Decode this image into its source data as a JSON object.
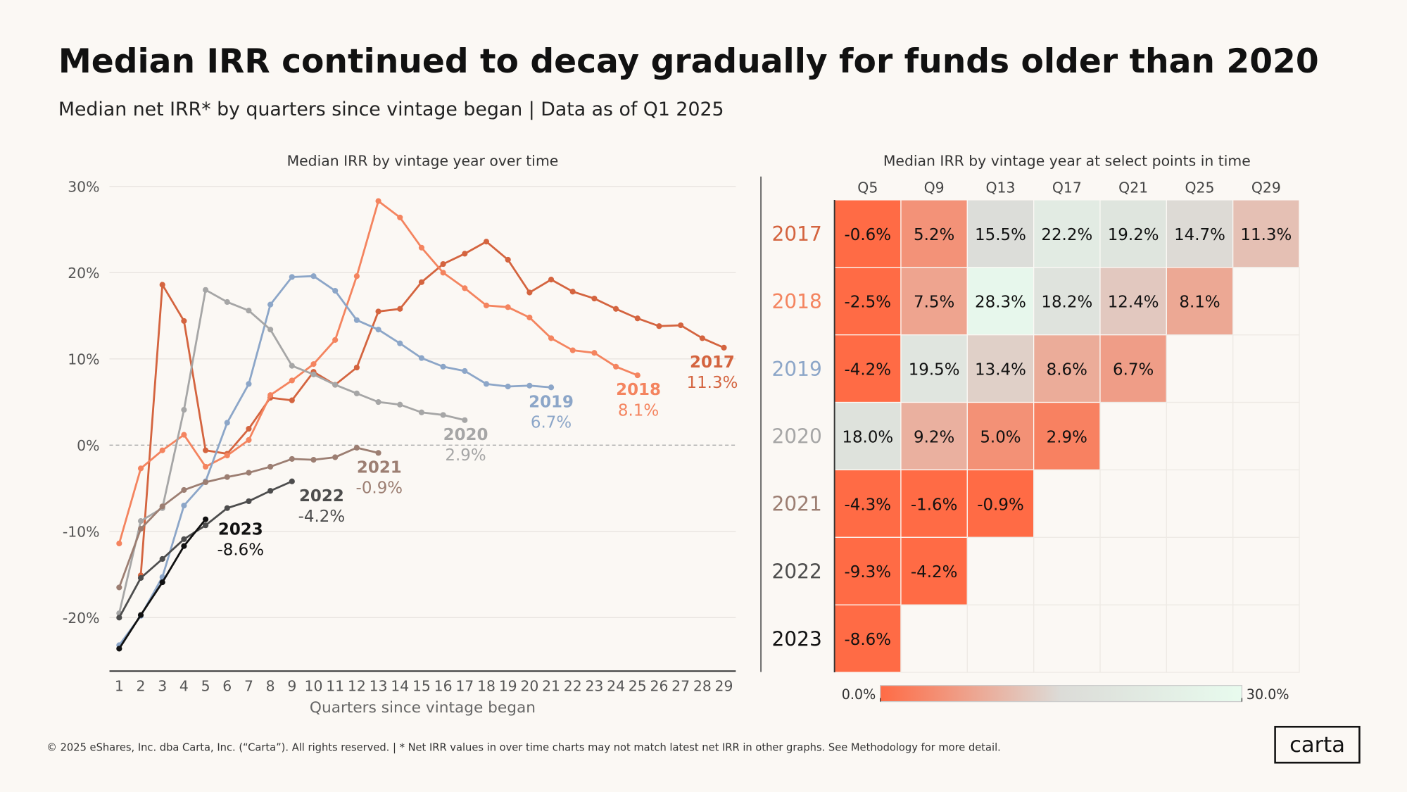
{
  "title": "Median IRR continued to decay gradually for funds older than 2020",
  "subtitle": "Median net IRR* by quarters since vintage began | Data as of Q1 2025",
  "footer": "© 2025 eShares, Inc. dba Carta, Inc. (“Carta”). All rights reserved.  |  * Net IRR values in over time charts may not match latest net IRR in other  graphs. See Methodology for more detail.",
  "logo": "carta",
  "chart_data": [
    {
      "type": "line",
      "title": "Median IRR by vintage year over time",
      "x_label": "Quarters since vintage began",
      "x": [
        1,
        2,
        3,
        4,
        5,
        6,
        7,
        8,
        9,
        10,
        11,
        12,
        13,
        14,
        15,
        16,
        17,
        18,
        19,
        20,
        21,
        22,
        23,
        24,
        25,
        26,
        27,
        28,
        29
      ],
      "xlim": [
        0.55,
        29.55
      ],
      "xticks": [
        1,
        2,
        3,
        4,
        5,
        6,
        7,
        8,
        9,
        10,
        11,
        12,
        13,
        14,
        15,
        16,
        17,
        18,
        19,
        20,
        21,
        22,
        23,
        24,
        25,
        26,
        27,
        28,
        29
      ],
      "ylim": [
        -26.2,
        30
      ],
      "yticks": [
        {
          "value": 30,
          "label": "30%"
        },
        {
          "value": 20,
          "label": "20%"
        },
        {
          "value": 10,
          "label": "10%"
        },
        {
          "value": 0,
          "label": "0%"
        },
        {
          "value": -10,
          "label": "-10%"
        },
        {
          "value": -20,
          "label": "-20%"
        }
      ],
      "grid": true,
      "zero_line": true,
      "series": [
        {
          "name": "2017",
          "color": "#d4643f",
          "end_label": "11.3%",
          "values": [
            null,
            -15.1,
            18.6,
            14.4,
            -0.6,
            -1.0,
            1.9,
            5.5,
            5.2,
            8.5,
            7.0,
            9.0,
            15.5,
            15.8,
            18.9,
            21.0,
            22.2,
            23.6,
            21.5,
            17.7,
            19.2,
            17.8,
            17.0,
            15.8,
            14.7,
            13.8,
            13.9,
            12.4,
            11.3
          ]
        },
        {
          "name": "2018",
          "color": "#f4845f",
          "end_label": "8.1%",
          "values": [
            -11.4,
            -2.7,
            -0.6,
            1.2,
            -2.5,
            -1.2,
            0.6,
            5.8,
            7.5,
            9.4,
            12.2,
            19.6,
            28.3,
            26.4,
            22.9,
            20.0,
            18.2,
            16.2,
            16.0,
            14.8,
            12.4,
            11.0,
            10.7,
            9.1,
            8.1,
            null,
            null,
            null,
            null
          ]
        },
        {
          "name": "2019",
          "color": "#8ca6c8",
          "end_label": "6.7%",
          "values": [
            -23.2,
            -19.8,
            -15.3,
            -7.0,
            -4.2,
            2.6,
            7.1,
            16.3,
            19.5,
            19.6,
            17.9,
            14.5,
            13.4,
            11.8,
            10.1,
            9.1,
            8.6,
            7.1,
            6.8,
            6.9,
            6.7,
            null,
            null,
            null,
            null,
            null,
            null,
            null,
            null
          ]
        },
        {
          "name": "2020",
          "color": "#a6a6a6",
          "end_label": "2.9%",
          "values": [
            -19.5,
            -8.8,
            -7.3,
            4.1,
            18.0,
            16.6,
            15.6,
            13.4,
            9.2,
            8.2,
            7.0,
            6.0,
            5.0,
            4.7,
            3.8,
            3.5,
            2.9,
            null,
            null,
            null,
            null,
            null,
            null,
            null,
            null,
            null,
            null,
            null,
            null
          ]
        },
        {
          "name": "2021",
          "color": "#9c7e72",
          "end_label": "-0.9%",
          "values": [
            -16.5,
            -9.7,
            -7.1,
            -5.2,
            -4.3,
            -3.7,
            -3.2,
            -2.5,
            -1.6,
            -1.7,
            -1.4,
            -0.3,
            -0.9,
            null,
            null,
            null,
            null,
            null,
            null,
            null,
            null,
            null,
            null,
            null,
            null,
            null,
            null,
            null,
            null
          ]
        },
        {
          "name": "2022",
          "color": "#4d4d4d",
          "end_label": "-4.2%",
          "values": [
            -20.0,
            -15.4,
            -13.2,
            -10.9,
            -9.3,
            -7.3,
            -6.5,
            -5.3,
            -4.2,
            null,
            null,
            null,
            null,
            null,
            null,
            null,
            null,
            null,
            null,
            null,
            null,
            null,
            null,
            null,
            null,
            null,
            null,
            null,
            null
          ]
        },
        {
          "name": "2023",
          "color": "#111111",
          "end_label": "-8.6%",
          "values": [
            -23.6,
            -19.7,
            -15.9,
            -11.7,
            -8.6,
            null,
            null,
            null,
            null,
            null,
            null,
            null,
            null,
            null,
            null,
            null,
            null,
            null,
            null,
            null,
            null,
            null,
            null,
            null,
            null,
            null,
            null,
            null,
            null
          ]
        }
      ]
    },
    {
      "type": "heatmap",
      "title": "Median IRR by vintage year at select points in time",
      "columns": [
        "Q5",
        "Q9",
        "Q13",
        "Q17",
        "Q21",
        "Q25",
        "Q29"
      ],
      "rows": [
        "2017",
        "2018",
        "2019",
        "2020",
        "2021",
        "2022",
        "2023"
      ],
      "row_colors": [
        "#d4643f",
        "#f4845f",
        "#8ca6c8",
        "#a6a6a6",
        "#9c7e72",
        "#4d4d4d",
        "#111111"
      ],
      "values": [
        [
          -0.6,
          5.2,
          15.5,
          22.2,
          19.2,
          14.7,
          11.3
        ],
        [
          -2.5,
          7.5,
          28.3,
          18.2,
          12.4,
          8.1,
          null
        ],
        [
          -4.2,
          19.5,
          13.4,
          8.6,
          6.7,
          null,
          null
        ],
        [
          18.0,
          9.2,
          5.0,
          2.9,
          null,
          null,
          null
        ],
        [
          -4.3,
          -1.6,
          -0.9,
          null,
          null,
          null,
          null
        ],
        [
          -9.3,
          -4.2,
          null,
          null,
          null,
          null,
          null
        ],
        [
          -8.6,
          null,
          null,
          null,
          null,
          null,
          null
        ]
      ],
      "value_labels": [
        [
          "-0.6%",
          "5.2%",
          "15.5%",
          "22.2%",
          "19.2%",
          "14.7%",
          "11.3%"
        ],
        [
          "-2.5%",
          "7.5%",
          "28.3%",
          "18.2%",
          "12.4%",
          "8.1%",
          null
        ],
        [
          "-4.2%",
          "19.5%",
          "13.4%",
          "8.6%",
          "6.7%",
          null,
          null
        ],
        [
          "18.0%",
          "9.2%",
          "5.0%",
          "2.9%",
          null,
          null,
          null
        ],
        [
          "-4.3%",
          "-1.6%",
          "-0.9%",
          null,
          null,
          null,
          null
        ],
        [
          "-9.3%",
          "-4.2%",
          null,
          null,
          null,
          null,
          null
        ],
        [
          "-8.6%",
          null,
          null,
          null,
          null,
          null,
          null
        ]
      ],
      "colorbar_lim": [
        0,
        30
      ],
      "colorbar_ticks": [
        {
          "value": 0,
          "label": "0.0%"
        },
        {
          "value": 30,
          "label": "30.0%"
        }
      ]
    }
  ]
}
